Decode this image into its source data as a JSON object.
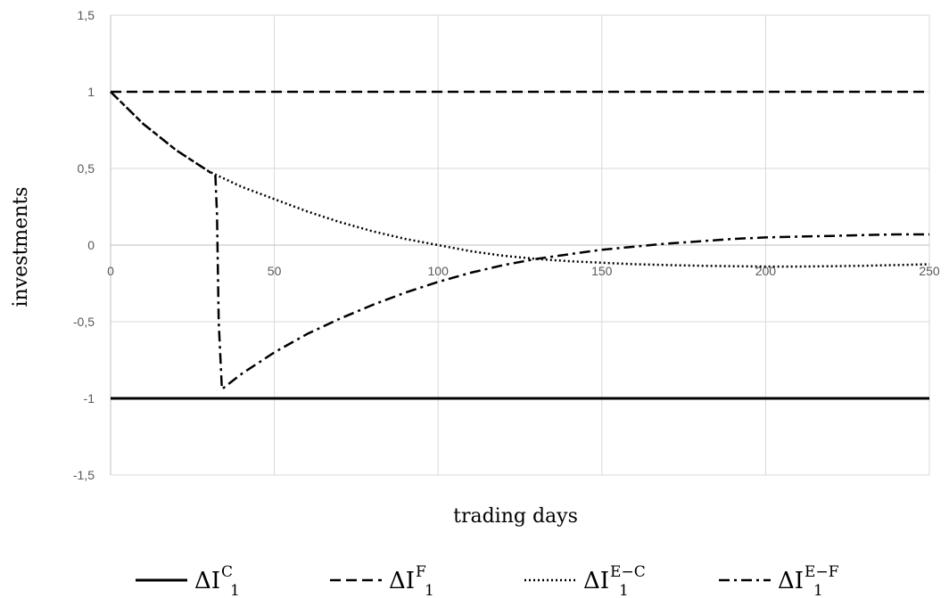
{
  "chart_data": {
    "type": "line",
    "xlabel": "trading days",
    "ylabel": "investments",
    "xlim": [
      0,
      250
    ],
    "ylim": [
      -1.5,
      1.5
    ],
    "x_ticks": [
      "0",
      "50",
      "100",
      "150",
      "200",
      "250"
    ],
    "y_ticks": [
      "1,5",
      "1",
      "0,5",
      "0",
      "-0,5",
      "-1",
      "-1,5"
    ],
    "grid": true,
    "legend_position": "bottom",
    "series": [
      {
        "name": "ΔI₁^C",
        "label_main": "ΔI",
        "label_sub": "1",
        "label_sup": "C",
        "style": "solid",
        "x": [
          0,
          250
        ],
        "y": [
          -1,
          -1
        ]
      },
      {
        "name": "ΔI₁^F",
        "label_main": "ΔI",
        "label_sub": "1",
        "label_sup": "F",
        "style": "dashed",
        "x": [
          0,
          250
        ],
        "y": [
          1,
          1
        ]
      },
      {
        "name": "ΔI₁^{E−C}",
        "label_main": "ΔI",
        "label_sub": "1",
        "label_sup": "E−C",
        "style": "dotted",
        "x": [
          0,
          10,
          20,
          30,
          40,
          50,
          60,
          70,
          80,
          90,
          100,
          110,
          120,
          130,
          140,
          150,
          160,
          170,
          180,
          190,
          200,
          210,
          220,
          230,
          240,
          250
        ],
        "y": [
          1.0,
          0.79,
          0.62,
          0.48,
          0.38,
          0.3,
          0.22,
          0.15,
          0.09,
          0.04,
          0.0,
          -0.04,
          -0.07,
          -0.09,
          -0.105,
          -0.115,
          -0.125,
          -0.13,
          -0.135,
          -0.138,
          -0.14,
          -0.14,
          -0.138,
          -0.135,
          -0.13,
          -0.125
        ]
      },
      {
        "name": "ΔI₁^{E−F}",
        "label_main": "ΔI",
        "label_sub": "1",
        "label_sup": "E−F",
        "style": "dashdot",
        "x": [
          0,
          10,
          20,
          25,
          30,
          32,
          32.5,
          33,
          34,
          40,
          50,
          60,
          70,
          80,
          90,
          100,
          110,
          120,
          130,
          140,
          150,
          160,
          170,
          180,
          190,
          200,
          210,
          220,
          230,
          240,
          250
        ],
        "y": [
          1.0,
          0.79,
          0.62,
          0.55,
          0.48,
          0.45,
          0.2,
          -0.5,
          -0.94,
          -0.84,
          -0.7,
          -0.58,
          -0.48,
          -0.39,
          -0.31,
          -0.24,
          -0.18,
          -0.13,
          -0.09,
          -0.06,
          -0.03,
          -0.01,
          0.01,
          0.025,
          0.04,
          0.05,
          0.055,
          0.06,
          0.065,
          0.07,
          0.07
        ]
      }
    ]
  }
}
